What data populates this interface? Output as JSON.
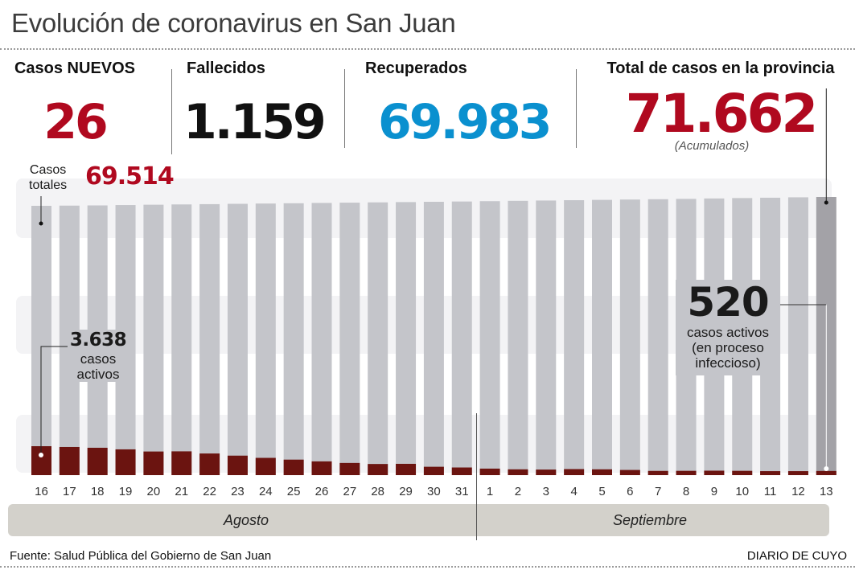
{
  "header": {
    "title": "Evolución de coronavirus en San Juan"
  },
  "stats": [
    {
      "label": "Casos NUEVOS",
      "value": "26",
      "color": "#b0091f"
    },
    {
      "label": "Fallecidos",
      "value": "1.159",
      "color": "#111111"
    },
    {
      "label": "Recuperados",
      "value": "69.983",
      "color": "#0a90cf"
    },
    {
      "label": "Total de casos en la provincia",
      "value": "71.662",
      "color": "#b0091f",
      "note": "(Acumulados)"
    }
  ],
  "annotations": {
    "totales_label_line1": "Casos",
    "totales_label_line2": "totales",
    "totales_value": "69.514",
    "start_active_value": "3.638",
    "start_active_line1": "casos",
    "start_active_line2": "activos",
    "end_active_value": "520",
    "end_active_line1": "casos activos",
    "end_active_line2": "(en proceso",
    "end_active_line3": "infeccioso)"
  },
  "months": {
    "first": "Agosto",
    "second": "Septiembre"
  },
  "footer": {
    "source": "Fuente: Salud Pública del Gobierno de San Juan",
    "brand": "DIARIO DE CUYO"
  },
  "colors": {
    "total_bar": "#c4c5ca",
    "total_bar_highlight": "#a3a2a7",
    "active_bar": "#6b1410",
    "band": "#f3f3f5",
    "accent_red": "#b0091f",
    "accent_blue": "#0a90cf"
  },
  "chart_data": {
    "type": "bar",
    "title": "Evolución de coronavirus en San Juan",
    "xlabel": "",
    "ylabel": "",
    "grid": false,
    "categories": [
      "16",
      "17",
      "18",
      "19",
      "20",
      "21",
      "22",
      "23",
      "24",
      "25",
      "26",
      "27",
      "28",
      "29",
      "30",
      "31",
      "1",
      "2",
      "3",
      "4",
      "5",
      "6",
      "7",
      "8",
      "9",
      "10",
      "11",
      "12",
      "13"
    ],
    "category_groups": [
      {
        "label": "Agosto",
        "from": "16",
        "to": "31"
      },
      {
        "label": "Septiembre",
        "from": "1",
        "to": "13"
      }
    ],
    "series": [
      {
        "name": "Casos totales",
        "values": [
          69514,
          69560,
          69610,
          69700,
          69780,
          69850,
          69920,
          70000,
          70070,
          70140,
          70210,
          70280,
          70350,
          70420,
          70490,
          70560,
          70640,
          70720,
          70800,
          70880,
          70960,
          71040,
          71120,
          71200,
          71300,
          71400,
          71480,
          71580,
          71662
        ]
      },
      {
        "name": "Casos activos",
        "values": [
          3638,
          3540,
          3440,
          3240,
          2970,
          2990,
          2720,
          2450,
          2170,
          1950,
          1730,
          1530,
          1400,
          1420,
          1050,
          960,
          820,
          730,
          700,
          760,
          730,
          650,
          530,
          540,
          560,
          540,
          500,
          500,
          520
        ]
      }
    ],
    "highlighted_category": "13",
    "ylim": [
      0,
      72000
    ],
    "legend": "none"
  }
}
